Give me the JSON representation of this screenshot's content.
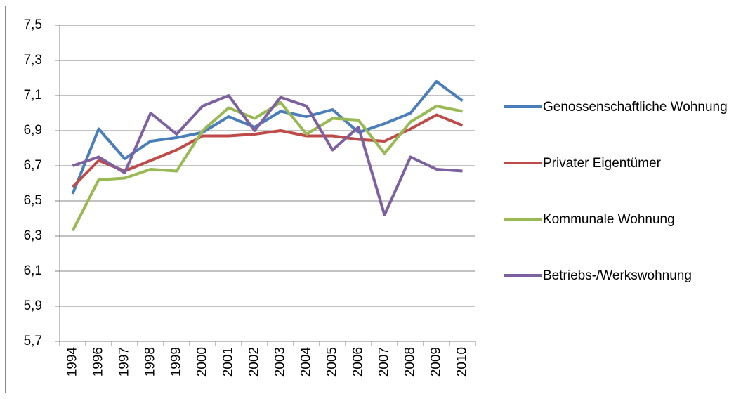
{
  "chart_data": {
    "type": "line",
    "categories": [
      "1994",
      "1996",
      "1997",
      "1998",
      "1999",
      "2000",
      "2001",
      "2002",
      "2003",
      "2004",
      "2005",
      "2006",
      "2007",
      "2008",
      "2009",
      "2010"
    ],
    "series": [
      {
        "name": "Genossenschaftliche Wohnung",
        "color": "#4a7ebb",
        "values": [
          6.54,
          6.91,
          6.74,
          6.84,
          6.86,
          6.89,
          6.98,
          6.92,
          7.01,
          6.98,
          7.02,
          6.89,
          6.94,
          7.0,
          7.18,
          7.07
        ]
      },
      {
        "name": "Privater Eigentümer",
        "color": "#be4b48",
        "values": [
          6.58,
          6.73,
          6.67,
          6.73,
          6.79,
          6.87,
          6.87,
          6.88,
          6.9,
          6.87,
          6.87,
          6.85,
          6.84,
          6.91,
          6.99,
          6.93
        ]
      },
      {
        "name": "Kommunale Wohnung",
        "color": "#98b954",
        "values": [
          6.33,
          6.62,
          6.63,
          6.68,
          6.67,
          6.9,
          7.03,
          6.97,
          7.06,
          6.88,
          6.97,
          6.96,
          6.77,
          6.95,
          7.04,
          7.01
        ]
      },
      {
        "name": "Betriebs-/Werkswohnung",
        "color": "#7d60a0",
        "values": [
          6.7,
          6.75,
          6.66,
          7.0,
          6.88,
          7.04,
          7.1,
          6.9,
          7.09,
          7.04,
          6.79,
          6.92,
          6.42,
          6.75,
          6.68,
          6.67
        ]
      }
    ],
    "ylim": [
      5.7,
      7.5
    ],
    "yticks": [
      {
        "value": 5.7,
        "label": "5,7"
      },
      {
        "value": 5.9,
        "label": "5,9"
      },
      {
        "value": 6.1,
        "label": "6,1"
      },
      {
        "value": 6.3,
        "label": "6,3"
      },
      {
        "value": 6.5,
        "label": "6,5"
      },
      {
        "value": 6.7,
        "label": "6,7"
      },
      {
        "value": 6.9,
        "label": "6,9"
      },
      {
        "value": 7.1,
        "label": "7,1"
      },
      {
        "value": 7.3,
        "label": "7,3"
      },
      {
        "value": 7.5,
        "label": "7,5"
      }
    ],
    "grid": true,
    "legend": "right"
  }
}
